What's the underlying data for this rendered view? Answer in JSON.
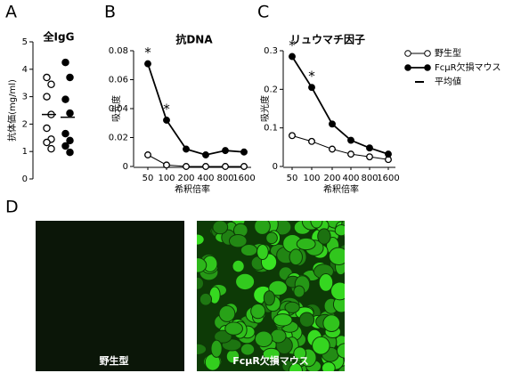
{
  "panel_labels": [
    "A",
    "B",
    "C",
    "D"
  ],
  "chart_data": [
    {
      "type": "dot",
      "title": "全IgG",
      "ylabel": "抗体価(mg/ml)",
      "ylim": [
        0,
        5
      ],
      "yticks": [
        0,
        1,
        2,
        3,
        4,
        5
      ],
      "mean_label": "平均値",
      "series": [
        {
          "name": "野生型",
          "marker": "open",
          "values": [
            3.7,
            3.45,
            3.0,
            2.35,
            1.85,
            1.45,
            1.33,
            1.1
          ],
          "mean": 2.35
        },
        {
          "name": "FcμR欠損マウス",
          "marker": "filled",
          "values": [
            4.25,
            3.7,
            2.9,
            2.4,
            1.65,
            1.4,
            1.2,
            0.97
          ],
          "mean": 2.25
        }
      ]
    },
    {
      "type": "line",
      "title": "抗DNA",
      "xlabel": "希釈倍率",
      "ylabel": "吸光度",
      "categories": [
        "50",
        "100",
        "200",
        "400",
        "800",
        "1600"
      ],
      "ylim": [
        0,
        0.08
      ],
      "yticks": [
        0,
        0.02,
        0.04,
        0.06,
        0.08
      ],
      "series": [
        {
          "marker": "open",
          "values": [
            0.008,
            0.001,
            0,
            0,
            0,
            0
          ]
        },
        {
          "marker": "filled",
          "values": [
            0.071,
            0.032,
            0.012,
            0.008,
            0.011,
            0.01
          ]
        }
      ],
      "annotations": [
        {
          "text": "*",
          "x": "50"
        },
        {
          "text": "*",
          "x": "100"
        }
      ]
    },
    {
      "type": "line",
      "title": "リュウマチ因子",
      "xlabel": "希釈倍率",
      "ylabel": "吸光度",
      "categories": [
        "50",
        "100",
        "200",
        "400",
        "800",
        "1600"
      ],
      "ylim": [
        0,
        0.3
      ],
      "yticks": [
        0,
        0.1,
        0.2,
        0.3
      ],
      "series": [
        {
          "marker": "open",
          "values": [
            0.08,
            0.065,
            0.045,
            0.032,
            0.025,
            0.018
          ]
        },
        {
          "marker": "filled",
          "values": [
            0.285,
            0.205,
            0.11,
            0.068,
            0.048,
            0.032
          ]
        }
      ],
      "annotations": [
        {
          "text": "*",
          "x": "50"
        },
        {
          "text": "*",
          "x": "100"
        }
      ]
    }
  ],
  "images": [
    {
      "label": "野生型"
    },
    {
      "label": "FcμR欠損マウス"
    }
  ]
}
